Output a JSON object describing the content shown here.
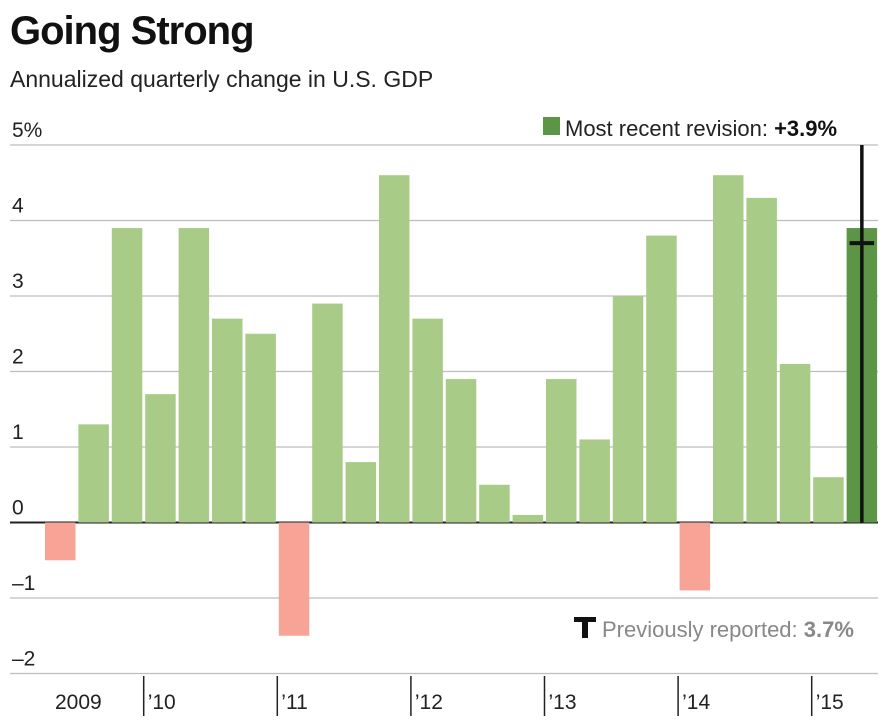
{
  "chart_data": {
    "type": "bar",
    "title": "Going Strong",
    "subtitle": "Annualized quarterly change in U.S. GDP",
    "ylim": [
      -2,
      5
    ],
    "yticks": [
      {
        "value": 5,
        "label": "5%"
      },
      {
        "value": 4,
        "label": "4"
      },
      {
        "value": 3,
        "label": "3"
      },
      {
        "value": 2,
        "label": "2"
      },
      {
        "value": 1,
        "label": "1"
      },
      {
        "value": 0,
        "label": "0"
      },
      {
        "value": -1,
        "label": "–1"
      },
      {
        "value": -2,
        "label": "–2"
      }
    ],
    "categories": [
      "2009 Q2",
      "2009 Q3",
      "2009 Q4",
      "2010 Q1",
      "2010 Q2",
      "2010 Q3",
      "2010 Q4",
      "2011 Q1",
      "2011 Q2",
      "2011 Q3",
      "2011 Q4",
      "2012 Q1",
      "2012 Q2",
      "2012 Q3",
      "2012 Q4",
      "2013 Q1",
      "2013 Q2",
      "2013 Q3",
      "2013 Q4",
      "2014 Q1",
      "2014 Q2",
      "2014 Q3",
      "2014 Q4",
      "2015 Q1",
      "2015 Q2"
    ],
    "values": [
      -0.5,
      1.3,
      3.9,
      1.7,
      3.9,
      2.7,
      2.5,
      -1.5,
      2.9,
      0.8,
      4.6,
      2.7,
      1.9,
      0.5,
      0.1,
      1.9,
      1.1,
      3.0,
      3.8,
      -0.9,
      4.6,
      4.3,
      2.1,
      0.6,
      3.9
    ],
    "year_labels": [
      {
        "label": "2009",
        "start_index": 0
      },
      {
        "label": "’10",
        "start_index": 3
      },
      {
        "label": "’11",
        "start_index": 7
      },
      {
        "label": "’12",
        "start_index": 11
      },
      {
        "label": "’13",
        "start_index": 15
      },
      {
        "label": "’14",
        "start_index": 19
      },
      {
        "label": "’15",
        "start_index": 23
      }
    ],
    "latest": {
      "value": 3.9,
      "previous": 3.7,
      "legend_label": "Most recent revision: ",
      "legend_value": "+3.9%",
      "previous_label": "Previously reported: ",
      "previous_value": "3.7%"
    },
    "colors": {
      "positive": "#a8cc88",
      "negative": "#f7a497",
      "latest": "#5b9545",
      "grid": "#bdbdbd",
      "axis": "#222222",
      "previous_marker": "#111111"
    },
    "grid": true
  }
}
